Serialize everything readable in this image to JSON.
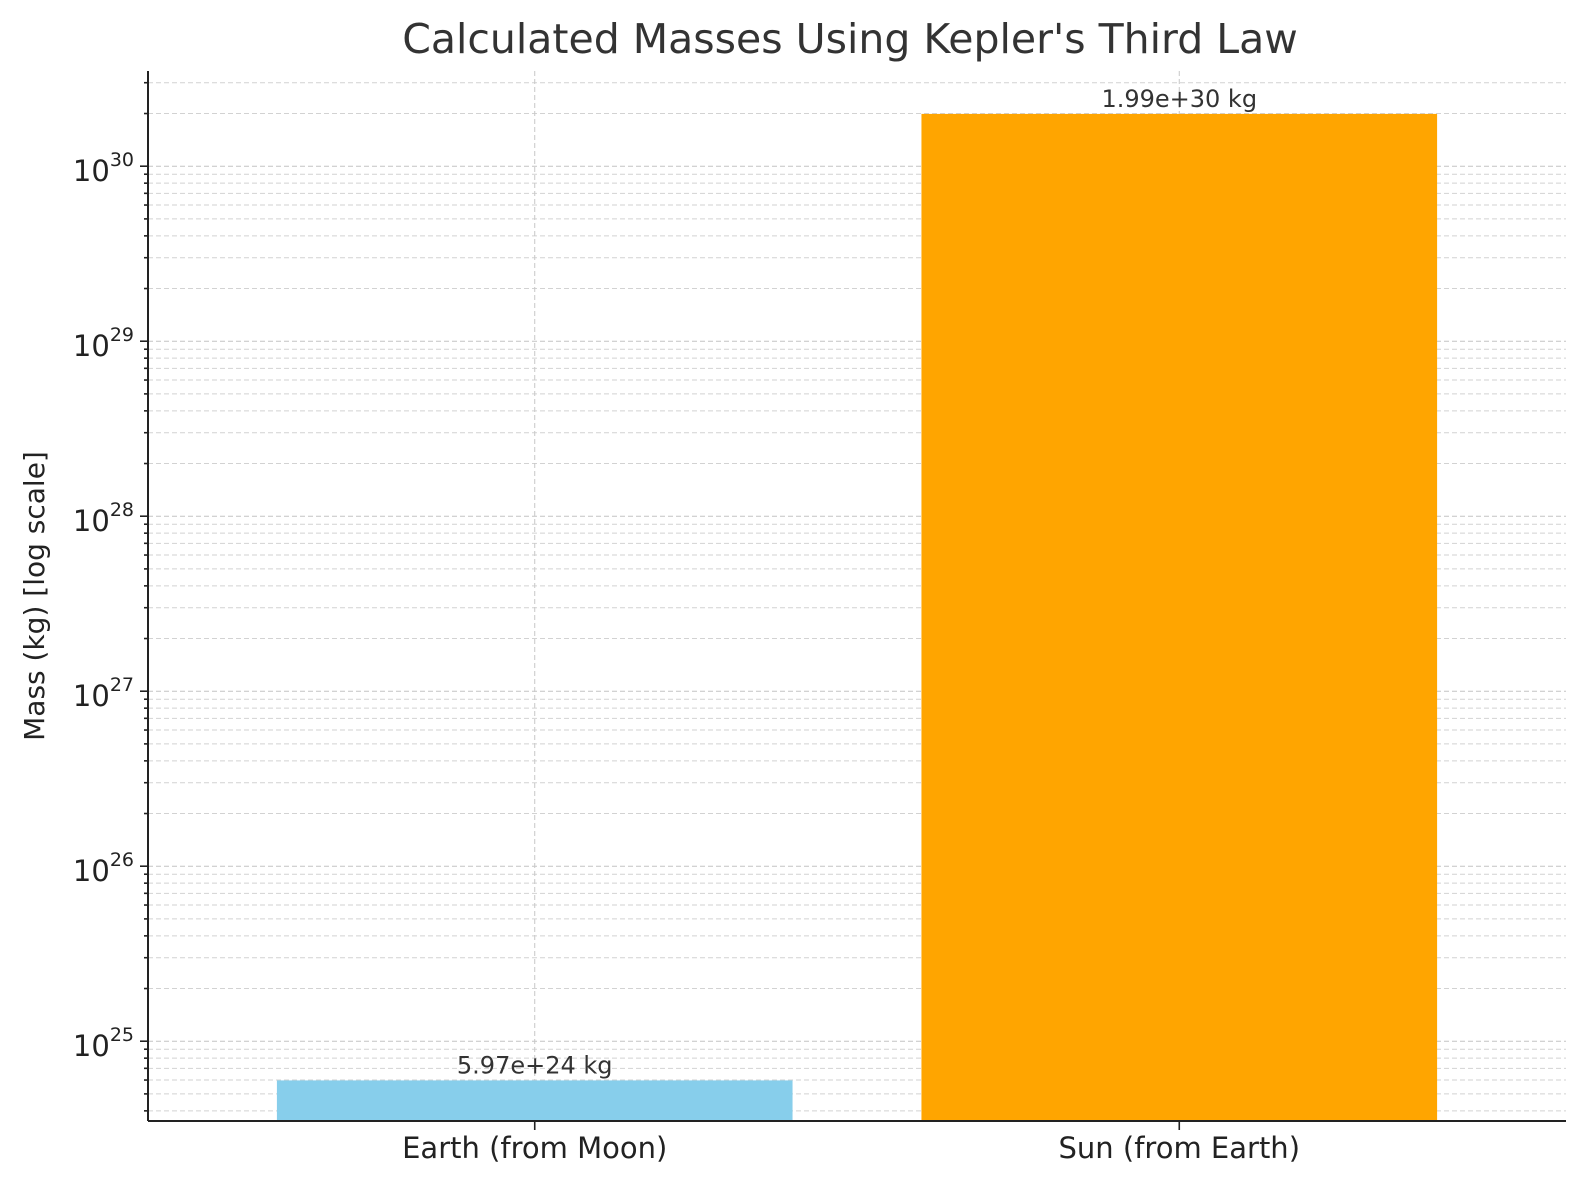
{
  "chart_data": {
    "type": "bar",
    "title": "Calculated Masses Using Kepler's Third Law",
    "xlabel": "",
    "ylabel": "Mass (kg) [log scale]",
    "yscale": "log",
    "ylim": [
      3.5e+24,
      3.5e+30
    ],
    "yticks": [
      {
        "base": "10",
        "exp": "25",
        "value": 1e+25
      },
      {
        "base": "10",
        "exp": "26",
        "value": 1e+26
      },
      {
        "base": "10",
        "exp": "27",
        "value": 1e+27
      },
      {
        "base": "10",
        "exp": "28",
        "value": 1e+28
      },
      {
        "base": "10",
        "exp": "29",
        "value": 1e+29
      },
      {
        "base": "10",
        "exp": "30",
        "value": 1e+30
      }
    ],
    "categories": [
      "Earth (from Moon)",
      "Sun (from Earth)"
    ],
    "values": [
      5.97e+24,
      1.99e+30
    ],
    "data_labels": [
      "5.97e+24 kg",
      "1.99e+30 kg"
    ],
    "colors": [
      "#87ceeb",
      "#ffa500"
    ],
    "grid": true,
    "legend": "none"
  }
}
